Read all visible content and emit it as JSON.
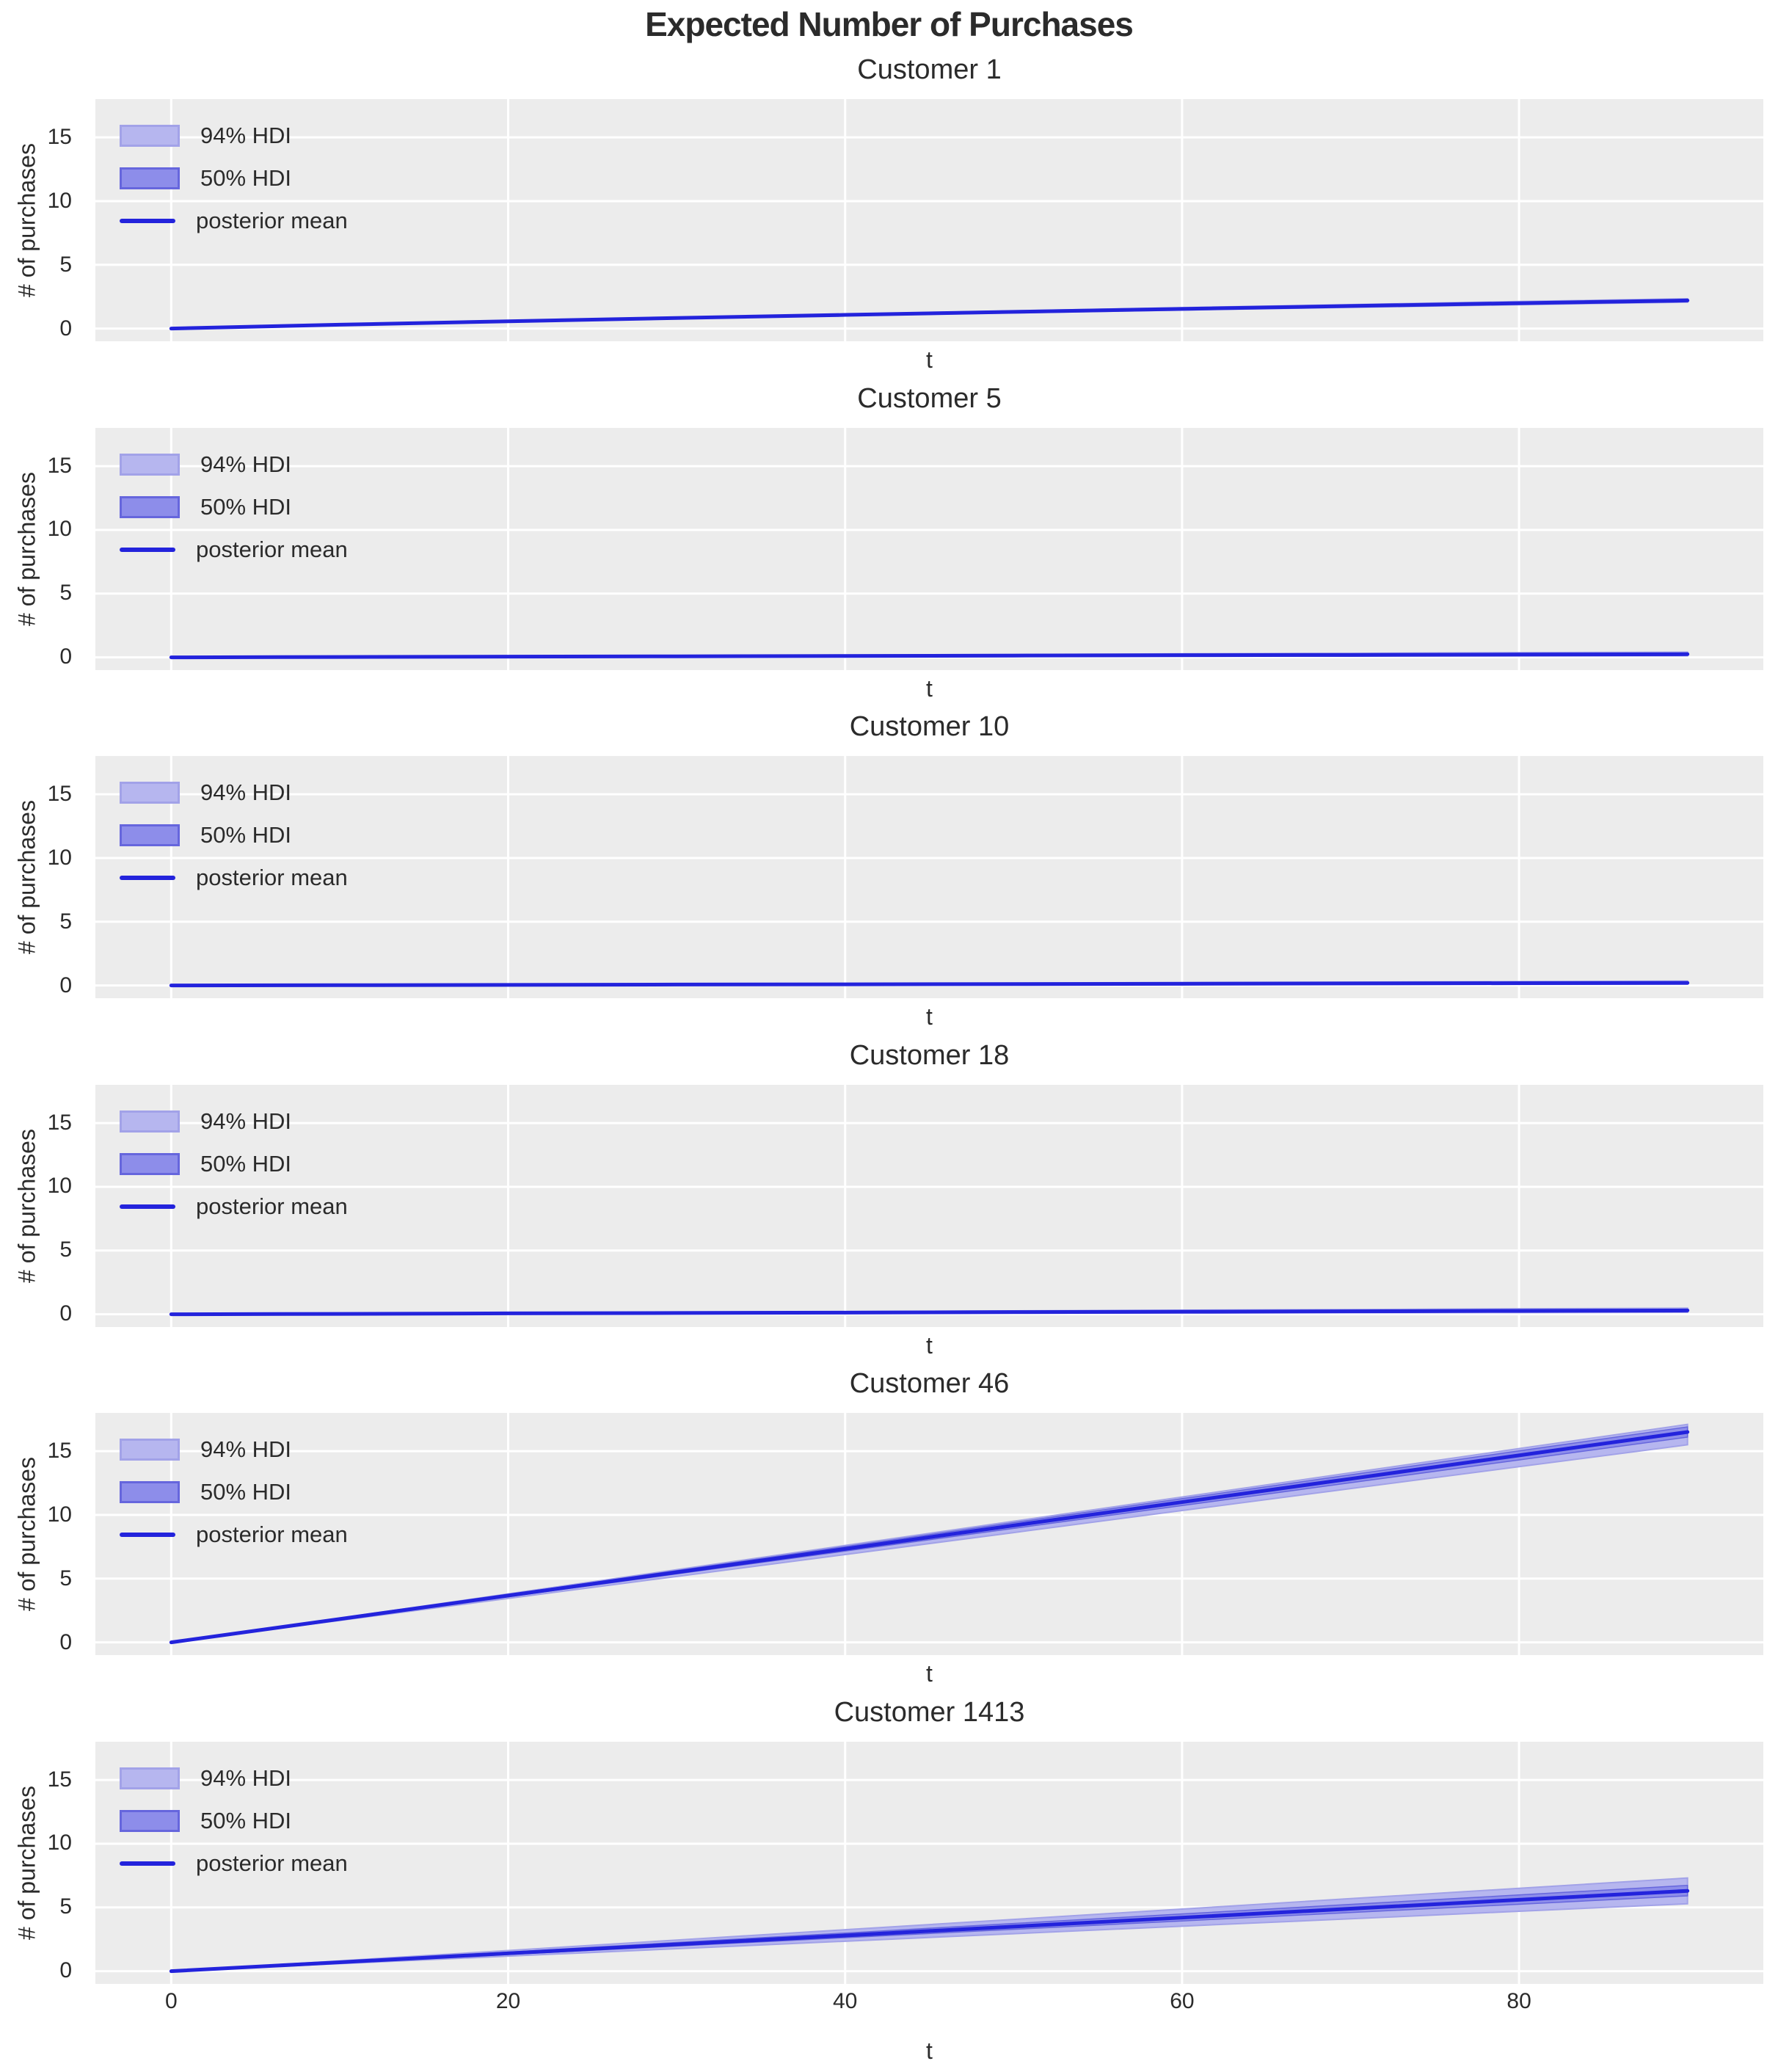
{
  "suptitle": "Expected Number of Purchases",
  "colors": {
    "mean_line": "#2323dc",
    "hdi94_fill": "#b6b6ef",
    "hdi94_edge": "#a2a2e8",
    "hdi50_fill": "#8d8dea",
    "hdi50_edge": "#6666dd",
    "plot_bg": "#ececec",
    "grid": "#ffffff",
    "text": "#2b2b2b"
  },
  "legend": {
    "hdi94_label": "94% HDI",
    "hdi50_label": "50% HDI",
    "mean_label": "posterior mean",
    "position": "upper left"
  },
  "axes": {
    "xlabel": "t",
    "ylabel": "# of purchases",
    "xtick_values": [
      0,
      20,
      40,
      60,
      80
    ],
    "xticks": [
      "0",
      "20",
      "40",
      "60",
      "80"
    ],
    "ytick_values": [
      0,
      5,
      10,
      15
    ],
    "yticks": [
      "0",
      "5",
      "10",
      "15"
    ],
    "xlim": [
      -4.5,
      94.5
    ],
    "ylim": [
      -1,
      18
    ],
    "grid": true
  },
  "chart_data": [
    {
      "type": "line",
      "title": "Customer 1",
      "x": [
        0,
        10,
        20,
        30,
        40,
        50,
        60,
        70,
        80,
        90
      ],
      "mean": [
        0,
        0.3,
        0.57,
        0.83,
        1.07,
        1.31,
        1.54,
        1.77,
        1.99,
        2.2
      ],
      "hdi94_lower": [
        0,
        0.28,
        0.53,
        0.78,
        1.01,
        1.23,
        1.45,
        1.66,
        1.87,
        2.07
      ],
      "hdi94_upper": [
        0,
        0.32,
        0.61,
        0.88,
        1.14,
        1.39,
        1.64,
        1.88,
        2.12,
        2.34
      ],
      "hdi50_lower": [
        0,
        0.29,
        0.55,
        0.81,
        1.04,
        1.28,
        1.5,
        1.72,
        1.94,
        2.14
      ],
      "hdi50_upper": [
        0,
        0.31,
        0.59,
        0.86,
        1.11,
        1.35,
        1.59,
        1.82,
        2.05,
        2.27
      ]
    },
    {
      "type": "line",
      "title": "Customer 5",
      "x": [
        0,
        10,
        20,
        30,
        40,
        50,
        60,
        70,
        80,
        90
      ],
      "mean": [
        0,
        0.03,
        0.06,
        0.08,
        0.11,
        0.14,
        0.17,
        0.19,
        0.22,
        0.25
      ],
      "hdi94_lower": [
        0,
        0.01,
        0.03,
        0.04,
        0.06,
        0.07,
        0.08,
        0.1,
        0.11,
        0.12
      ],
      "hdi94_upper": [
        0,
        0.05,
        0.1,
        0.14,
        0.19,
        0.23,
        0.28,
        0.32,
        0.37,
        0.41
      ],
      "hdi50_lower": [
        0,
        0.02,
        0.04,
        0.06,
        0.08,
        0.1,
        0.12,
        0.14,
        0.16,
        0.18
      ],
      "hdi50_upper": [
        0,
        0.04,
        0.08,
        0.11,
        0.15,
        0.18,
        0.22,
        0.25,
        0.29,
        0.32
      ]
    },
    {
      "type": "line",
      "title": "Customer 10",
      "x": [
        0,
        10,
        20,
        30,
        40,
        50,
        60,
        70,
        80,
        90
      ],
      "mean": [
        0,
        0.02,
        0.04,
        0.07,
        0.09,
        0.11,
        0.13,
        0.16,
        0.18,
        0.2
      ],
      "hdi94_lower": [
        0,
        0.01,
        0.02,
        0.03,
        0.05,
        0.06,
        0.07,
        0.08,
        0.09,
        0.1
      ],
      "hdi94_upper": [
        0,
        0.04,
        0.08,
        0.12,
        0.15,
        0.19,
        0.23,
        0.26,
        0.3,
        0.34
      ],
      "hdi50_lower": [
        0,
        0.015,
        0.03,
        0.05,
        0.065,
        0.08,
        0.1,
        0.11,
        0.13,
        0.14
      ],
      "hdi50_upper": [
        0,
        0.03,
        0.06,
        0.09,
        0.12,
        0.15,
        0.18,
        0.21,
        0.24,
        0.27
      ]
    },
    {
      "type": "line",
      "title": "Customer 18",
      "x": [
        0,
        10,
        20,
        30,
        40,
        50,
        60,
        70,
        80,
        90
      ],
      "mean": [
        0,
        0.03,
        0.07,
        0.1,
        0.13,
        0.17,
        0.2,
        0.23,
        0.27,
        0.3
      ],
      "hdi94_lower": [
        0,
        0.02,
        0.03,
        0.05,
        0.07,
        0.08,
        0.1,
        0.12,
        0.13,
        0.15
      ],
      "hdi94_upper": [
        0,
        0.05,
        0.11,
        0.16,
        0.21,
        0.27,
        0.32,
        0.37,
        0.43,
        0.48
      ],
      "hdi50_lower": [
        0,
        0.025,
        0.05,
        0.075,
        0.1,
        0.13,
        0.15,
        0.18,
        0.2,
        0.23
      ],
      "hdi50_upper": [
        0,
        0.04,
        0.09,
        0.13,
        0.17,
        0.21,
        0.26,
        0.3,
        0.34,
        0.38
      ]
    },
    {
      "type": "line",
      "title": "Customer 46",
      "x": [
        0,
        10,
        20,
        30,
        40,
        50,
        60,
        70,
        80,
        90
      ],
      "mean": [
        0,
        1.83,
        3.67,
        5.5,
        7.33,
        9.17,
        11.0,
        12.83,
        14.67,
        16.5
      ],
      "hdi94_lower": [
        0,
        1.72,
        3.45,
        5.17,
        6.89,
        8.61,
        10.34,
        12.06,
        13.78,
        15.5
      ],
      "hdi94_upper": [
        0,
        1.9,
        3.8,
        5.7,
        7.6,
        9.5,
        11.4,
        13.3,
        15.2,
        17.1
      ],
      "hdi50_lower": [
        0,
        1.79,
        3.58,
        5.37,
        7.16,
        8.94,
        10.73,
        12.52,
        14.31,
        16.1
      ],
      "hdi50_upper": [
        0,
        1.88,
        3.76,
        5.63,
        7.51,
        9.39,
        11.27,
        13.14,
        15.02,
        16.9
      ]
    },
    {
      "type": "line",
      "title": "Customer 1413",
      "x": [
        0,
        10,
        20,
        30,
        40,
        50,
        60,
        70,
        80,
        90
      ],
      "mean": [
        0,
        0.7,
        1.4,
        2.1,
        2.8,
        3.5,
        4.2,
        4.9,
        5.6,
        6.3
      ],
      "hdi94_lower": [
        0,
        0.59,
        1.18,
        1.76,
        2.35,
        2.94,
        3.53,
        4.11,
        4.7,
        5.29
      ],
      "hdi94_upper": [
        0,
        0.81,
        1.62,
        2.44,
        3.25,
        4.06,
        4.87,
        5.69,
        6.5,
        7.31
      ],
      "hdi50_lower": [
        0,
        0.66,
        1.31,
        1.97,
        2.63,
        3.28,
        3.94,
        4.6,
        5.25,
        5.91
      ],
      "hdi50_upper": [
        0,
        0.75,
        1.5,
        2.25,
        2.99,
        3.74,
        4.49,
        5.24,
        5.98,
        6.73
      ]
    }
  ]
}
